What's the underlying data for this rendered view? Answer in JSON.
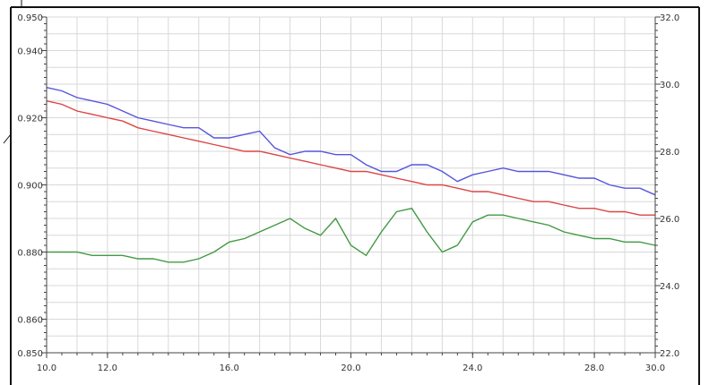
{
  "chart_data": {
    "type": "line",
    "grid": true,
    "x": [
      10.0,
      10.5,
      11.0,
      11.5,
      12.0,
      12.5,
      13.0,
      13.5,
      14.0,
      14.5,
      15.0,
      15.5,
      16.0,
      16.5,
      17.0,
      17.5,
      18.0,
      18.5,
      19.0,
      19.5,
      20.0,
      20.5,
      21.0,
      21.5,
      22.0,
      22.5,
      23.0,
      23.5,
      24.0,
      24.5,
      25.0,
      25.5,
      26.0,
      26.5,
      27.0,
      27.5,
      28.0,
      28.5,
      29.0,
      29.5,
      30.0
    ],
    "x_ticks": [
      "10.0",
      "12.0",
      "16.0",
      "20.0",
      "24.0",
      "28.0",
      "30.0"
    ],
    "x_tick_values": [
      10,
      12,
      16,
      20,
      24,
      28,
      30
    ],
    "x_range": [
      10,
      30
    ],
    "y_left": {
      "range": [
        0.85,
        0.95
      ],
      "ticks": [
        "0.850",
        "0.860",
        "0.880",
        "0.900",
        "0.920",
        "0.940",
        "0.950"
      ],
      "tick_values": [
        0.85,
        0.86,
        0.88,
        0.9,
        0.92,
        0.94,
        0.95
      ]
    },
    "y_right": {
      "range": [
        22.0,
        32.0
      ],
      "ticks": [
        "22.0",
        "24.0",
        "26.0",
        "28.0",
        "30.0",
        "32.0"
      ],
      "tick_values": [
        22,
        24,
        26,
        28,
        30,
        32
      ]
    },
    "series": [
      {
        "axis": "left",
        "color": "#5555dd",
        "values": [
          0.929,
          0.928,
          0.926,
          0.925,
          0.924,
          0.922,
          0.92,
          0.919,
          0.918,
          0.917,
          0.917,
          0.914,
          0.914,
          0.915,
          0.916,
          0.911,
          0.909,
          0.91,
          0.91,
          0.909,
          0.909,
          0.906,
          0.904,
          0.904,
          0.906,
          0.906,
          0.904,
          0.901,
          0.903,
          0.904,
          0.905,
          0.904,
          0.904,
          0.904,
          0.903,
          0.902,
          0.902,
          0.9,
          0.899,
          0.899,
          0.897
        ]
      },
      {
        "axis": "left",
        "color": "#dd4444",
        "values": [
          0.925,
          0.924,
          0.922,
          0.921,
          0.92,
          0.919,
          0.917,
          0.916,
          0.915,
          0.914,
          0.913,
          0.912,
          0.911,
          0.91,
          0.91,
          0.909,
          0.908,
          0.907,
          0.906,
          0.905,
          0.904,
          0.904,
          0.903,
          0.902,
          0.901,
          0.9,
          0.9,
          0.899,
          0.898,
          0.898,
          0.897,
          0.896,
          0.895,
          0.895,
          0.894,
          0.893,
          0.893,
          0.892,
          0.892,
          0.891,
          0.891
        ]
      },
      {
        "axis": "right",
        "color": "#449944",
        "values": [
          25.0,
          25.0,
          25.0,
          24.9,
          24.9,
          24.9,
          24.8,
          24.8,
          24.7,
          24.7,
          24.8,
          25.0,
          25.3,
          25.4,
          25.6,
          25.8,
          26.0,
          25.7,
          25.5,
          26.0,
          25.2,
          24.9,
          25.6,
          26.2,
          26.3,
          25.6,
          25.0,
          25.2,
          25.9,
          26.1,
          26.1,
          26.0,
          25.9,
          25.8,
          25.6,
          25.5,
          25.4,
          25.4,
          25.3,
          25.3,
          25.2
        ]
      }
    ]
  },
  "colors": {
    "grid": "#d8d8d8",
    "axis": "#444444",
    "frame": "#111111",
    "background": "#ffffff"
  }
}
